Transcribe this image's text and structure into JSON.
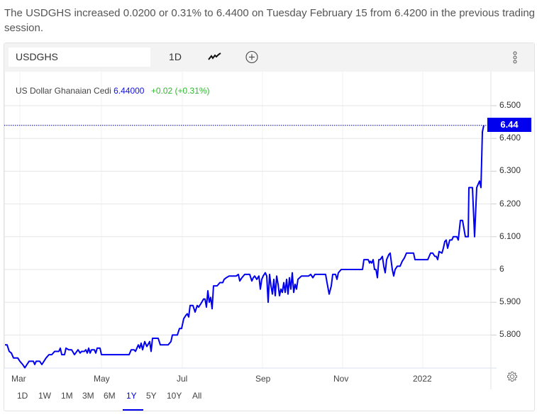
{
  "summary": "The USDGHS increased 0.0200 or 0.31% to 6.4400 on Tuesday February 15 from 6.4200 in the previous trading session.",
  "toolbar": {
    "symbol_value": "USDGHS",
    "interval_label": "1D",
    "chart_type_icon": "line-chart-icon",
    "add_icon": "plus-circle-icon",
    "more_icon": "vertical-dots-icon"
  },
  "legend": {
    "name": "US Dollar Ghanaian Cedi",
    "price": "6.44000",
    "change": "+0.02 (+0.31%)"
  },
  "price_tag": "6.44",
  "colors": {
    "line": "#0000ee",
    "up": "#2eb82e",
    "grid": "#e6e6e6",
    "toolbar_bg": "#f3f3f3"
  },
  "ranges": [
    {
      "label": "1D",
      "active": false
    },
    {
      "label": "1W",
      "active": false
    },
    {
      "label": "1M",
      "active": false
    },
    {
      "label": "3M",
      "active": false
    },
    {
      "label": "6M",
      "active": false
    },
    {
      "label": "1Y",
      "active": true
    },
    {
      "label": "5Y",
      "active": false
    },
    {
      "label": "10Y",
      "active": false
    },
    {
      "label": "All",
      "active": false
    }
  ],
  "chart_data": {
    "type": "line",
    "title": "US Dollar Ghanaian Cedi (USDGHS) 1Y",
    "xlabel": "",
    "ylabel": "",
    "x_tick_labels": [
      "Mar",
      "May",
      "Jul",
      "Sep",
      "Nov",
      "2022"
    ],
    "y_tick_labels": [
      "5.800",
      "5.900",
      "6",
      "6.100",
      "6.200",
      "6.300",
      "6.400",
      "6.500"
    ],
    "ylim": [
      5.72,
      6.58
    ],
    "grid": true,
    "last_value": 6.44,
    "series": [
      {
        "name": "USDGHS",
        "points": [
          [
            0,
            5.77
          ],
          [
            3,
            5.77
          ],
          [
            6,
            5.75
          ],
          [
            9,
            5.745
          ],
          [
            12,
            5.73
          ],
          [
            18,
            5.73
          ],
          [
            21,
            5.72
          ],
          [
            25,
            5.71
          ],
          [
            28,
            5.7
          ],
          [
            31,
            5.71
          ],
          [
            34,
            5.72
          ],
          [
            40,
            5.72
          ],
          [
            42,
            5.71
          ],
          [
            44,
            5.72
          ],
          [
            49,
            5.72
          ],
          [
            52,
            5.71
          ],
          [
            58,
            5.73
          ],
          [
            62,
            5.74
          ],
          [
            66,
            5.74
          ],
          [
            70,
            5.75
          ],
          [
            76,
            5.75
          ],
          [
            78,
            5.76
          ],
          [
            80,
            5.74
          ],
          [
            84,
            5.74
          ],
          [
            86,
            5.76
          ],
          [
            90,
            5.755
          ],
          [
            94,
            5.755
          ],
          [
            98,
            5.74
          ],
          [
            103,
            5.755
          ],
          [
            106,
            5.745
          ],
          [
            108,
            5.75
          ],
          [
            112,
            5.75
          ],
          [
            114,
            5.755
          ],
          [
            116,
            5.745
          ],
          [
            118,
            5.76
          ],
          [
            120,
            5.745
          ],
          [
            122,
            5.755
          ],
          [
            126,
            5.755
          ],
          [
            128,
            5.745
          ],
          [
            130,
            5.76
          ],
          [
            134,
            5.76
          ],
          [
            136,
            5.74
          ],
          [
            150,
            5.74
          ],
          [
            175,
            5.74
          ],
          [
            178,
            5.755
          ],
          [
            182,
            5.755
          ],
          [
            184,
            5.75
          ],
          [
            188,
            5.77
          ],
          [
            190,
            5.76
          ],
          [
            192,
            5.775
          ],
          [
            194,
            5.755
          ],
          [
            197,
            5.78
          ],
          [
            200,
            5.765
          ],
          [
            204,
            5.78
          ],
          [
            206,
            5.75
          ],
          [
            208,
            5.79
          ],
          [
            216,
            5.79
          ],
          [
            219,
            5.77
          ],
          [
            230,
            5.77
          ],
          [
            234,
            5.78
          ],
          [
            236,
            5.8
          ],
          [
            243,
            5.8
          ],
          [
            246,
            5.82
          ],
          [
            249,
            5.82
          ],
          [
            252,
            5.85
          ],
          [
            255,
            5.86
          ],
          [
            257,
            5.865
          ],
          [
            259,
            5.855
          ],
          [
            261,
            5.89
          ],
          [
            265,
            5.89
          ],
          [
            268,
            5.87
          ],
          [
            271,
            5.89
          ],
          [
            273,
            5.885
          ],
          [
            276,
            5.895
          ],
          [
            280,
            5.91
          ],
          [
            282,
            5.91
          ],
          [
            284,
            5.885
          ],
          [
            286,
            5.935
          ],
          [
            288,
            5.9
          ],
          [
            290,
            5.915
          ],
          [
            292,
            5.88
          ],
          [
            294,
            5.95
          ],
          [
            299,
            5.95
          ],
          [
            303,
            5.96
          ],
          [
            307,
            5.96
          ],
          [
            309,
            5.97
          ],
          [
            312,
            5.975
          ],
          [
            316,
            5.98
          ],
          [
            326,
            5.98
          ],
          [
            329,
            5.985
          ],
          [
            331,
            5.965
          ],
          [
            334,
            5.975
          ],
          [
            338,
            5.985
          ],
          [
            345,
            5.985
          ],
          [
            348,
            5.965
          ],
          [
            350,
            5.975
          ],
          [
            352,
            5.98
          ],
          [
            355,
            5.97
          ],
          [
            358,
            5.98
          ],
          [
            360,
            5.94
          ],
          [
            362,
            5.97
          ],
          [
            364,
            5.98
          ],
          [
            367,
            5.99
          ],
          [
            369,
            5.98
          ],
          [
            371,
            5.9
          ],
          [
            373,
            5.985
          ],
          [
            375,
            5.95
          ],
          [
            377,
            5.925
          ],
          [
            379,
            5.97
          ],
          [
            381,
            5.92
          ],
          [
            383,
            5.98
          ],
          [
            385,
            5.955
          ],
          [
            387,
            5.92
          ],
          [
            389,
            5.94
          ],
          [
            391,
            5.93
          ],
          [
            393,
            5.96
          ],
          [
            395,
            5.93
          ],
          [
            397,
            5.97
          ],
          [
            399,
            5.925
          ],
          [
            401,
            5.975
          ],
          [
            403,
            5.94
          ],
          [
            405,
            5.99
          ],
          [
            407,
            5.93
          ],
          [
            409,
            5.955
          ],
          [
            411,
            5.94
          ],
          [
            413,
            5.97
          ],
          [
            418,
            5.98
          ],
          [
            428,
            5.98
          ],
          [
            431,
            5.985
          ],
          [
            434,
            5.975
          ],
          [
            437,
            5.985
          ],
          [
            452,
            5.985
          ],
          [
            454,
            5.96
          ],
          [
            457,
            5.925
          ],
          [
            460,
            5.95
          ],
          [
            462,
            5.985
          ],
          [
            466,
            5.985
          ],
          [
            468,
            5.97
          ],
          [
            470,
            5.99
          ],
          [
            474,
            6.0
          ],
          [
            479,
            6.0
          ],
          [
            481,
            6.0
          ],
          [
            504,
            6.0
          ],
          [
            506,
            6.03
          ],
          [
            512,
            6.03
          ],
          [
            514,
            6.02
          ],
          [
            515,
            6.025
          ],
          [
            517,
            6.02
          ],
          [
            519,
            6.03
          ],
          [
            521,
            6.0
          ],
          [
            523,
            6.0
          ],
          [
            525,
            5.975
          ],
          [
            527,
            6.03
          ],
          [
            529,
            6.03
          ],
          [
            532,
            6.04
          ],
          [
            534,
            6.01
          ],
          [
            536,
            5.99
          ],
          [
            538,
            6.03
          ],
          [
            541,
            6.045
          ],
          [
            543,
            6.05
          ],
          [
            546,
            6.0
          ],
          [
            548,
            5.98
          ],
          [
            550,
            6.0
          ],
          [
            553,
            6.01
          ],
          [
            557,
            6.01
          ],
          [
            560,
            6.025
          ],
          [
            563,
            6.035
          ],
          [
            566,
            6.05
          ],
          [
            576,
            6.05
          ],
          [
            578,
            6.03
          ],
          [
            596,
            6.03
          ],
          [
            598,
            6.04
          ],
          [
            600,
            6.05
          ],
          [
            603,
            6.05
          ],
          [
            606,
            6.04
          ],
          [
            608,
            6.04
          ],
          [
            610,
            6.03
          ],
          [
            612,
            6.055
          ],
          [
            616,
            6.05
          ],
          [
            618,
            6.065
          ],
          [
            620,
            6.085
          ],
          [
            622,
            6.09
          ],
          [
            624,
            6.065
          ],
          [
            627,
            6.09
          ],
          [
            630,
            6.09
          ],
          [
            632,
            6.1
          ],
          [
            637,
            6.1
          ],
          [
            639,
            6.09
          ],
          [
            642,
            6.15
          ],
          [
            645,
            6.15
          ],
          [
            649,
            6.1
          ],
          [
            653,
            6.1
          ],
          [
            654,
            6.25
          ],
          [
            659,
            6.25
          ],
          [
            662,
            6.1
          ],
          [
            665,
            6.25
          ],
          [
            669,
            6.27
          ],
          [
            671,
            6.25
          ],
          [
            673,
            6.42
          ],
          [
            675,
            6.44
          ]
        ]
      }
    ]
  }
}
